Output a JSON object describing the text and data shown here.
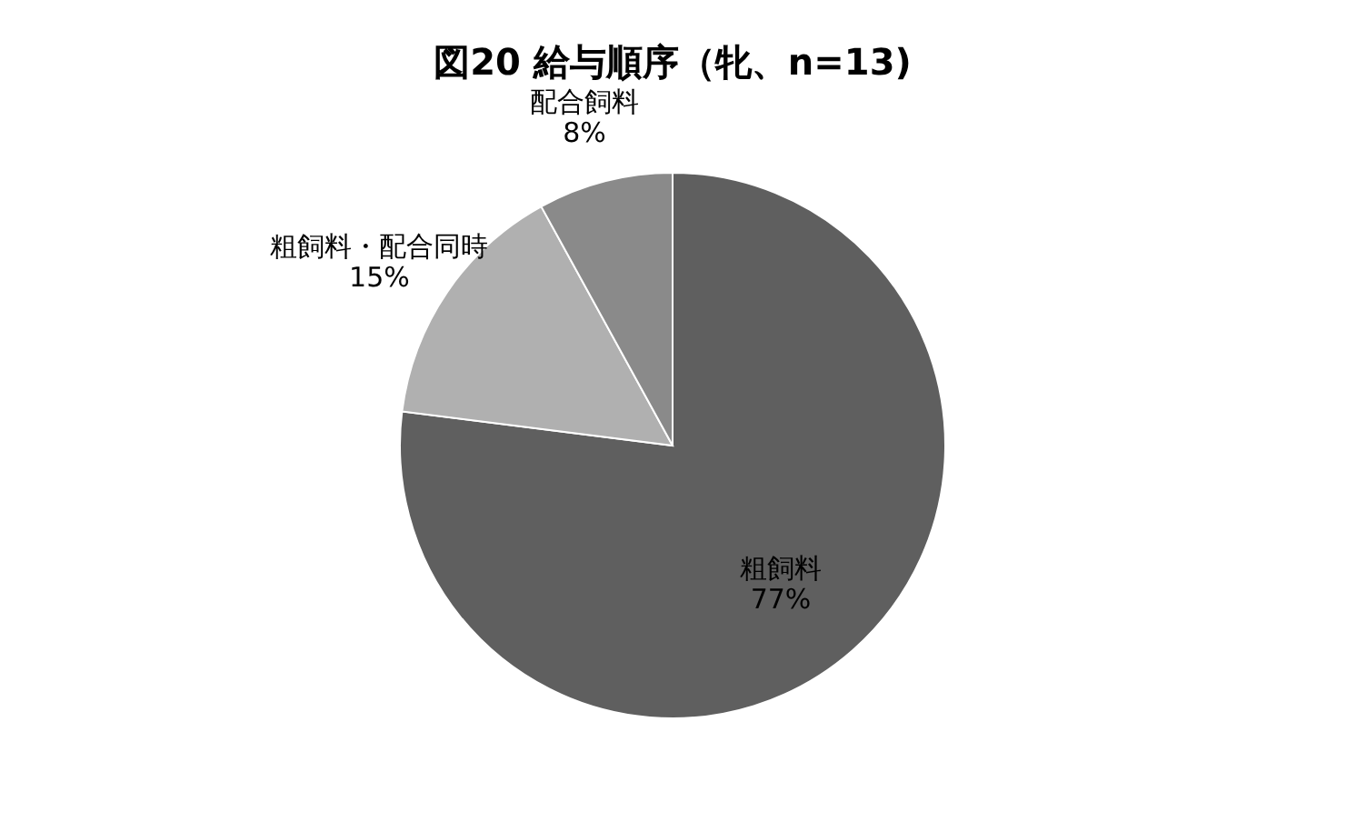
{
  "chart_data": {
    "type": "pie",
    "title": "図20  給与順序（牝、n=13)",
    "categories": [
      "粗飼料",
      "粗飼料・配合同時",
      "配合飼料"
    ],
    "values": [
      77,
      15,
      8
    ],
    "colors": [
      "#5f5f5f",
      "#b0b0b0",
      "#8a8a8a"
    ],
    "value_labels": [
      "77%",
      "15%",
      "8%"
    ],
    "legend": false
  }
}
